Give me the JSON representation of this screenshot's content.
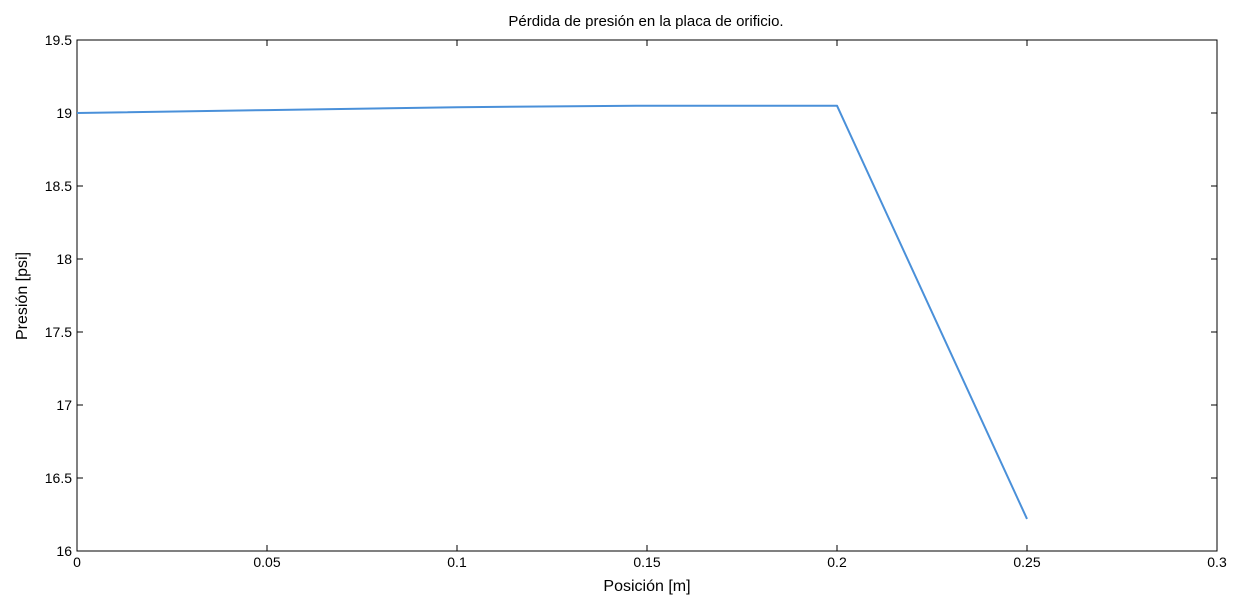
{
  "chart_data": {
    "type": "line",
    "title": "Pérdida de presión en la placa de orificio.",
    "xlabel": "Posición [m]",
    "ylabel": "Presión [psi]",
    "xlim": [
      0,
      0.3
    ],
    "ylim": [
      16,
      19.5
    ],
    "xticks": [
      0,
      0.05,
      0.1,
      0.15,
      0.2,
      0.25,
      0.3
    ],
    "xtick_labels": [
      "0",
      "0.05",
      "0.1",
      "0.15",
      "0.2",
      "0.25",
      "0.3"
    ],
    "yticks": [
      16,
      16.5,
      17,
      17.5,
      18,
      18.5,
      19,
      19.5
    ],
    "ytick_labels": [
      "16",
      "16.5",
      "17",
      "17.5",
      "18",
      "18.5",
      "19",
      "19.5"
    ],
    "grid": false,
    "series": [
      {
        "color": "#4a90d9",
        "x": [
          0,
          0.05,
          0.1,
          0.15,
          0.2,
          0.25
        ],
        "y": [
          19.0,
          19.02,
          19.04,
          19.05,
          19.05,
          16.22
        ]
      }
    ]
  }
}
